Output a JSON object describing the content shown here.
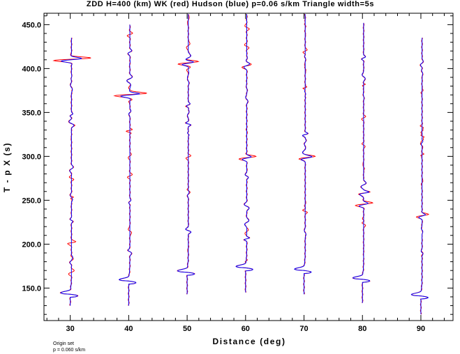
{
  "chart_data": {
    "type": "line",
    "title": "ZDD H=400 (km) WK (red) Hudson (blue) p=0.06 s/km Triangle width=5s",
    "xlabel": "Distance (deg)",
    "ylabel": "T - p X (s)",
    "xlim": [
      25.5,
      95.5
    ],
    "ylim": [
      113,
      463
    ],
    "x_ticks": [
      30,
      40,
      50,
      60,
      70,
      80,
      90
    ],
    "x_tick_labels": [
      "30",
      "40",
      "50",
      "60",
      "70",
      "80",
      "90"
    ],
    "y_ticks": [
      150,
      200,
      250,
      300,
      350,
      400,
      450
    ],
    "y_tick_labels": [
      "150.0",
      "200.0",
      "250.0",
      "300.0",
      "350.0",
      "400.0",
      "450.0"
    ],
    "grid": false,
    "series": [
      {
        "name": "WK",
        "color": "#ff0000"
      },
      {
        "name": "Hudson",
        "color": "#0000ff"
      }
    ],
    "traces": [
      {
        "distance": 30,
        "t_start": 130,
        "t_end": 435,
        "hudson_onset": 140,
        "wk_large_arrival": 410,
        "wk_large_amp": 4.5
      },
      {
        "distance": 40,
        "t_start": 130,
        "t_end": 450,
        "hudson_onset": 155,
        "wk_large_arrival": 370,
        "wk_large_amp": 4.0
      },
      {
        "distance": 50,
        "t_start": 143,
        "t_end": 462,
        "hudson_onset": 165,
        "wk_large_arrival": 406,
        "wk_large_amp": 2.8
      },
      {
        "distance": 60,
        "t_start": 145,
        "t_end": 462,
        "hudson_onset": 170,
        "wk_large_arrival": 298,
        "wk_large_amp": 2.0
      },
      {
        "distance": 70,
        "t_start": 143,
        "t_end": 462,
        "hudson_onset": 167,
        "wk_large_arrival": 298,
        "wk_large_amp": 2.0
      },
      {
        "distance": 80,
        "t_start": 133,
        "t_end": 452,
        "hudson_onset": 157,
        "wk_large_arrival": 245,
        "wk_large_amp": 2.0
      },
      {
        "distance": 90,
        "t_start": 120,
        "t_end": 435,
        "hudson_onset": 138,
        "wk_large_arrival": 232,
        "wk_large_amp": 1.5
      }
    ]
  },
  "footer": {
    "line1": "Origin set",
    "line2": "p =  0.060 s/km"
  }
}
